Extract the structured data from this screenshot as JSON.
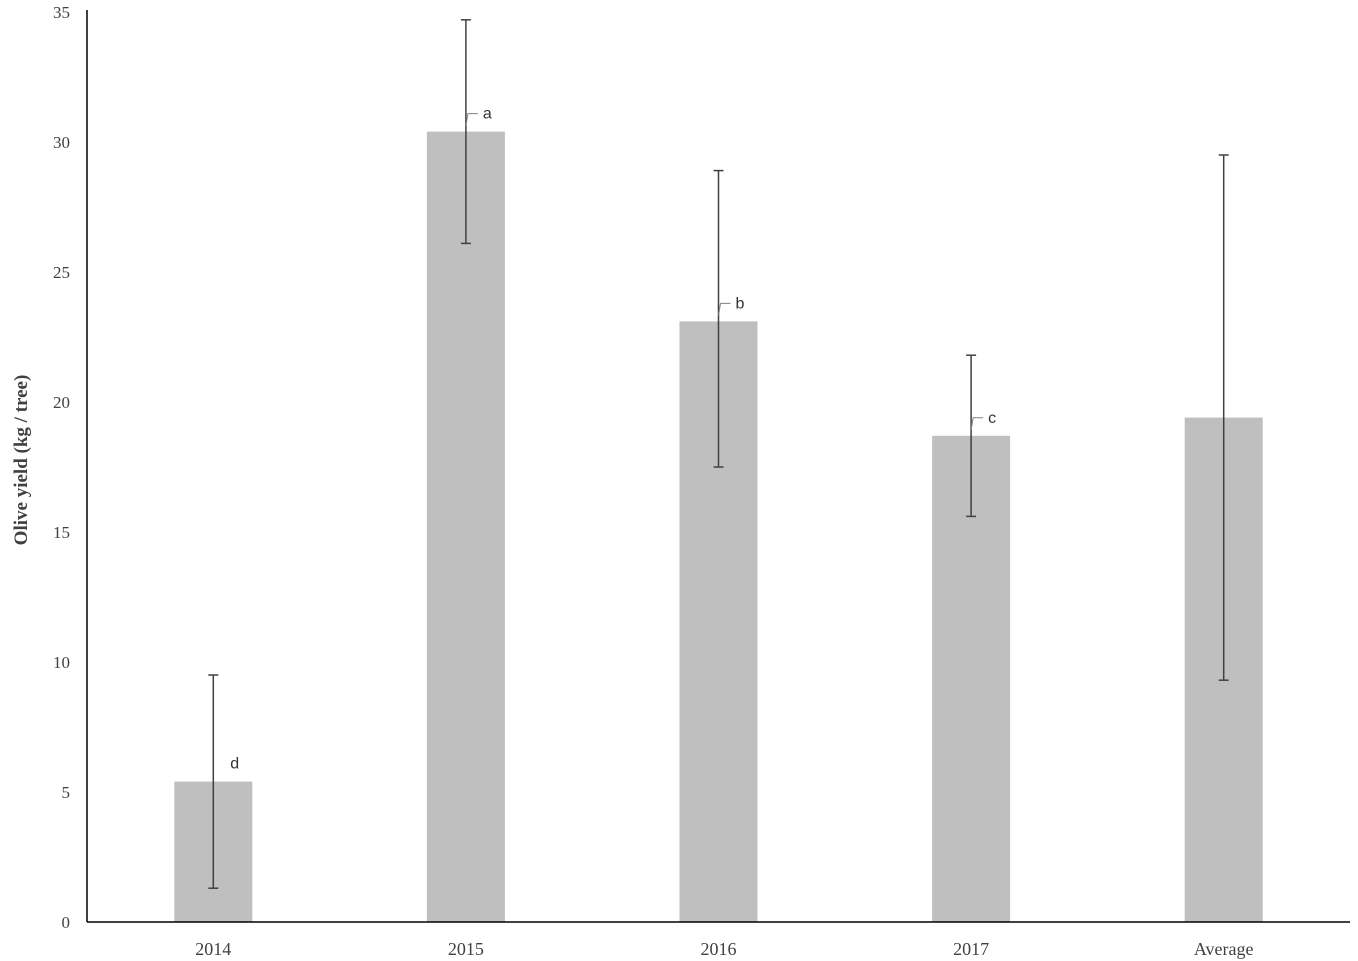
{
  "chart_data": {
    "type": "bar",
    "title": "",
    "xlabel": "",
    "ylabel": "Olive yield (kg / tree)",
    "ylim": [
      0,
      35
    ],
    "yticks": [
      0,
      5,
      10,
      15,
      20,
      25,
      30,
      35
    ],
    "categories": [
      "2014",
      "2015",
      "2016",
      "2017",
      "Average"
    ],
    "values": [
      5.4,
      30.4,
      23.1,
      18.7,
      19.4
    ],
    "error_low": [
      1.3,
      26.1,
      17.5,
      15.6,
      9.3
    ],
    "error_high": [
      9.5,
      34.7,
      28.9,
      21.8,
      29.5
    ],
    "significance_letters": [
      "d",
      "a",
      "b",
      "c",
      ""
    ],
    "grid": false,
    "legend": "none",
    "colors": {
      "bar": "#bfbfbf",
      "axis": "#000000",
      "error_bar": "#404040",
      "text": "#404040"
    }
  }
}
